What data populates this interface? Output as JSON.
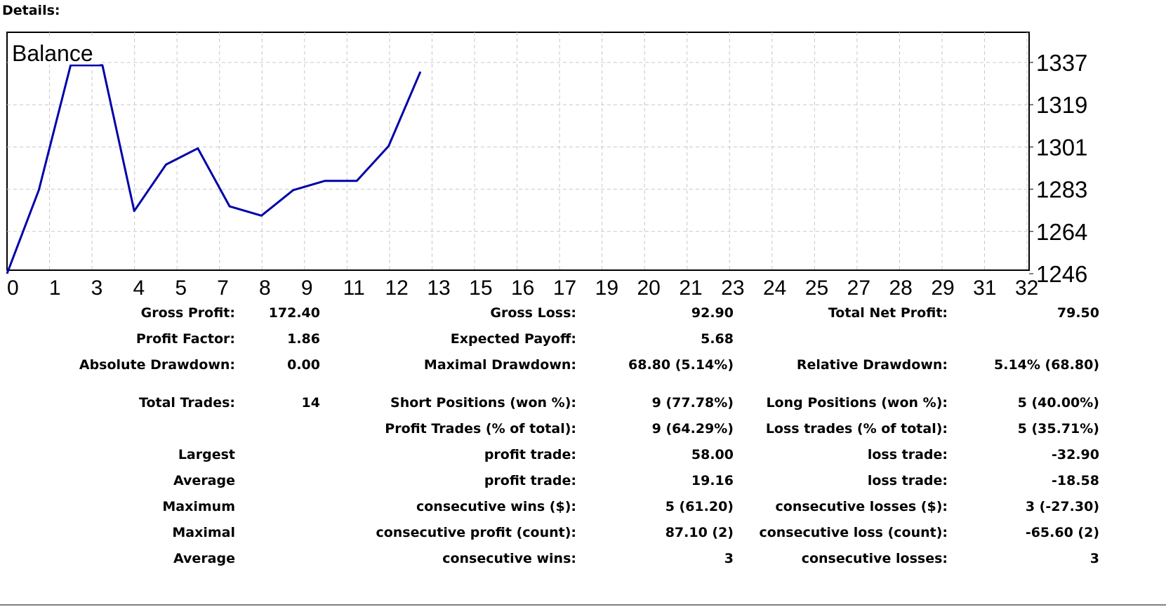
{
  "heading": "Details:",
  "chart_data": {
    "type": "line",
    "title": "Balance",
    "x": [
      0,
      1,
      2,
      3,
      4,
      5,
      6,
      7,
      8,
      9,
      10,
      11,
      12,
      13
    ],
    "series": [
      {
        "values": [
          1246,
          1282,
          1337,
          1337,
          1273,
          1293,
          1300,
          1275,
          1271,
          1282,
          1286,
          1286,
          1301,
          1333
        ]
      }
    ],
    "x_tick_labels": [
      "0",
      "1",
      "3",
      "4",
      "5",
      "7",
      "8",
      "9",
      "11",
      "12",
      "13",
      "15",
      "16",
      "17",
      "19",
      "20",
      "21",
      "23",
      "24",
      "25",
      "27",
      "28",
      "29",
      "31",
      "32"
    ],
    "y_tick_labels": [
      "1337",
      "1319",
      "1301",
      "1283",
      "1264",
      "1246"
    ],
    "ylim": [
      1246,
      1337
    ],
    "grid": true,
    "line_color": "#0000aa"
  },
  "stats": [
    [
      "Gross Profit:",
      "172.40",
      "Gross Loss:",
      "92.90",
      "Total Net Profit:",
      "79.50"
    ],
    [
      "Profit Factor:",
      "1.86",
      "Expected Payoff:",
      "5.68",
      "",
      ""
    ],
    [
      "Absolute Drawdown:",
      "0.00",
      "Maximal Drawdown:",
      "68.80 (5.14%)",
      "Relative Drawdown:",
      "5.14% (68.80)"
    ],
    [
      "Total Trades:",
      "14",
      "Short Positions (won %):",
      "9 (77.78%)",
      "Long Positions (won %):",
      "5 (40.00%)"
    ],
    [
      "",
      "",
      "Profit Trades (% of total):",
      "9 (64.29%)",
      "Loss trades (% of total):",
      "5 (35.71%)"
    ],
    [
      "Largest",
      "",
      "profit trade:",
      "58.00",
      "loss trade:",
      "-32.90"
    ],
    [
      "Average",
      "",
      "profit trade:",
      "19.16",
      "loss trade:",
      "-18.58"
    ],
    [
      "Maximum",
      "",
      "consecutive wins ($):",
      "5 (61.20)",
      "consecutive losses ($):",
      "3 (-27.30)"
    ],
    [
      "Maximal",
      "",
      "consecutive profit (count):",
      "87.10 (2)",
      "consecutive loss (count):",
      "-65.60 (2)"
    ],
    [
      "Average",
      "",
      "consecutive wins:",
      "3",
      "consecutive losses:",
      "3"
    ]
  ]
}
